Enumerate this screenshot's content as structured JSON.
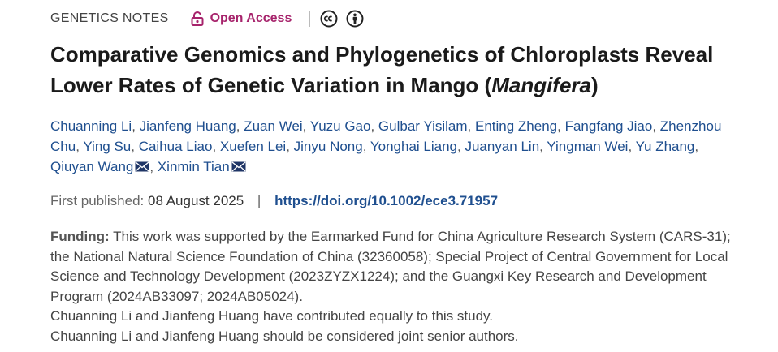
{
  "header": {
    "section": "GENETICS NOTES",
    "open_access": "Open Access",
    "license_icons": [
      "cc-icon",
      "by-person-icon"
    ],
    "accent_color": "#a7246c"
  },
  "article": {
    "title_main": "Comparative Genomics and Phylogenetics of Chloroplasts Reveal Lower Rates of Genetic Variation in Mango (",
    "title_italic": "Mangifera",
    "title_end": ")",
    "authors": [
      {
        "name": "Chuanning Li",
        "sep": ", ",
        "mail": false
      },
      {
        "name": "Jianfeng Huang",
        "sep": ", ",
        "mail": false
      },
      {
        "name": "Zuan Wei",
        "sep": ", ",
        "mail": false
      },
      {
        "name": "Yuzu Gao",
        "sep": ", ",
        "mail": false
      },
      {
        "name": "Gulbar Yisilam",
        "sep": ", ",
        "mail": false
      },
      {
        "name": "Enting Zheng",
        "sep": ", ",
        "mail": false
      },
      {
        "name": "Fangfang Jiao",
        "sep": ", ",
        "mail": false
      },
      {
        "name": "Zhenzhou Chu",
        "sep": ", ",
        "mail": false
      },
      {
        "name": "Ying Su",
        "sep": ", ",
        "mail": false
      },
      {
        "name": "Caihua Liao",
        "sep": ", ",
        "mail": false
      },
      {
        "name": "Xuefen Lei",
        "sep": ", ",
        "mail": false
      },
      {
        "name": "Jinyu Nong",
        "sep": ", ",
        "mail": false
      },
      {
        "name": "Yonghai Liang",
        "sep": ", ",
        "mail": false
      },
      {
        "name": "Juanyan Lin",
        "sep": ", ",
        "mail": false
      },
      {
        "name": "Yingman Wei",
        "sep": ", ",
        "mail": false
      },
      {
        "name": "Yu Zhang",
        "sep": ", ",
        "mail": false
      },
      {
        "name": "Qiuyan Wang",
        "sep": ", ",
        "mail": true
      },
      {
        "name": "Xinmin Tian",
        "sep": "",
        "mail": true
      }
    ],
    "first_published_label": "First published:",
    "first_published_date": "08 August 2025",
    "separator": "|",
    "doi": "https://doi.org/10.1002/ece3.71957",
    "link_color": "#1f4f8f"
  },
  "funding": {
    "label": "Funding:",
    "text": "This work was supported by the Earmarked Fund for China Agriculture Research System (CARS-31); the National Natural Science Foundation of China (32360058); Special Project of Central Government for Local Science and Technology Development (2023ZYZX1224); and the Guangxi Key Research and Development Program (2024AB33097; 2024AB05024).",
    "notes": [
      "Chuanning Li and Jianfeng Huang have contributed equally to this study.",
      "Chuanning Li and Jianfeng Huang should be considered joint senior authors."
    ]
  }
}
